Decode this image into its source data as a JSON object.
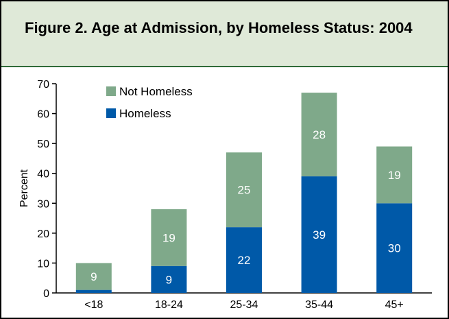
{
  "title": "Figure 2. Age at Admission, by Homeless Status: 2004",
  "chart_data": {
    "type": "bar",
    "stacked": true,
    "title": "Figure 2. Age at Admission, by Homeless Status: 2004",
    "xlabel": "",
    "ylabel": "Percent",
    "ylim": [
      0,
      70
    ],
    "yticks": [
      0,
      10,
      20,
      30,
      40,
      50,
      60,
      70
    ],
    "categories": [
      "<18",
      "18-24",
      "25-34",
      "35-44",
      "45+"
    ],
    "series": [
      {
        "name": "Homeless",
        "values": [
          1,
          9,
          22,
          39,
          30
        ],
        "labels": [
          "",
          "9",
          "22",
          "39",
          "30"
        ],
        "color": "#0059a8"
      },
      {
        "name": "Not Homeless",
        "values": [
          9,
          19,
          25,
          28,
          19
        ],
        "labels": [
          "9",
          "19",
          "25",
          "28",
          "19"
        ],
        "color": "#7fa98a"
      }
    ],
    "legend": {
      "placement": "top-left",
      "order": [
        "Not Homeless",
        "Homeless"
      ]
    },
    "grid": false
  }
}
